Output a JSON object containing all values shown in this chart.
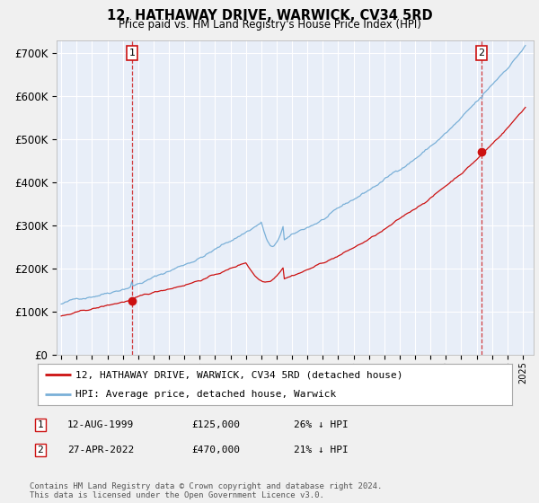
{
  "title": "12, HATHAWAY DRIVE, WARWICK, CV34 5RD",
  "subtitle": "Price paid vs. HM Land Registry's House Price Index (HPI)",
  "ylabel_ticks": [
    "£0",
    "£100K",
    "£200K",
    "£300K",
    "£400K",
    "£500K",
    "£600K",
    "£700K"
  ],
  "ytick_values": [
    0,
    100000,
    200000,
    300000,
    400000,
    500000,
    600000,
    700000
  ],
  "ylim": [
    0,
    730000
  ],
  "xlim_start": 1994.7,
  "xlim_end": 2025.7,
  "bg_color": "#f0f0f0",
  "plot_bg": "#e8eef8",
  "grid_color": "#ffffff",
  "hpi_color": "#7ab0d8",
  "price_color": "#cc1111",
  "sale1_date": 1999.615,
  "sale1_price": 125000,
  "sale2_date": 2022.32,
  "sale2_price": 470000,
  "legend_label1": "12, HATHAWAY DRIVE, WARWICK, CV34 5RD (detached house)",
  "legend_label2": "HPI: Average price, detached house, Warwick",
  "table_row1": [
    "1",
    "12-AUG-1999",
    "£125,000",
    "26% ↓ HPI"
  ],
  "table_row2": [
    "2",
    "27-APR-2022",
    "£470,000",
    "21% ↓ HPI"
  ],
  "footer": "Contains HM Land Registry data © Crown copyright and database right 2024.\nThis data is licensed under the Open Government Licence v3.0."
}
